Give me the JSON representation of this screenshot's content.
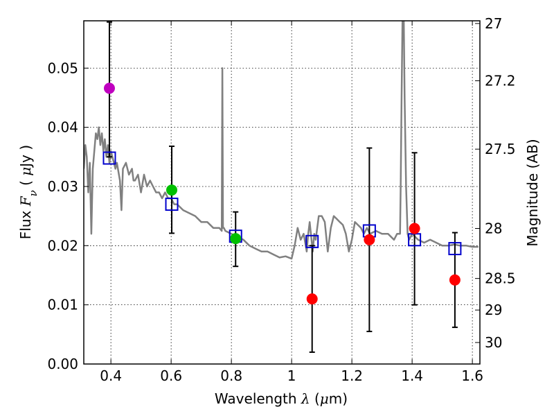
{
  "chart_data": {
    "type": "scatter",
    "title": "",
    "xlabel": {
      "prefix": "Wavelength  ",
      "symbol": "λ",
      "suffix": " (",
      "mu": "μ",
      "unit": "m)"
    },
    "ylabel": {
      "prefix": "Flux  ",
      "symbol": "F",
      "sub": "ν",
      "open": "  ( ",
      "mu": "μ",
      "unit": "Jy )"
    },
    "y2label": "Magnitude (AB)",
    "xlim": [
      0.31,
      1.625
    ],
    "ylim": [
      0.0,
      0.058
    ],
    "grid": true,
    "x_ticks": [
      {
        "value": 0.4,
        "label": "0.4"
      },
      {
        "value": 0.6,
        "label": "0.6"
      },
      {
        "value": 0.8,
        "label": "0.8"
      },
      {
        "value": 1.0,
        "label": "1"
      },
      {
        "value": 1.2,
        "label": "1.2"
      },
      {
        "value": 1.4,
        "label": "1.4"
      },
      {
        "value": 1.6,
        "label": "1.6"
      }
    ],
    "y_ticks": [
      {
        "value": 0.0,
        "label": "0.00"
      },
      {
        "value": 0.01,
        "label": "0.01"
      },
      {
        "value": 0.02,
        "label": "0.02"
      },
      {
        "value": 0.03,
        "label": "0.03"
      },
      {
        "value": 0.04,
        "label": "0.04"
      },
      {
        "value": 0.05,
        "label": "0.05"
      }
    ],
    "y2_ticks": [
      {
        "mag": 27.0,
        "label": "27"
      },
      {
        "mag": 27.2,
        "label": "27.2"
      },
      {
        "mag": 27.5,
        "label": "27.5"
      },
      {
        "mag": 28.0,
        "label": "28"
      },
      {
        "mag": 28.5,
        "label": "28.5"
      },
      {
        "mag": 29.0,
        "label": "29"
      },
      {
        "mag": 30.0,
        "label": "30"
      }
    ],
    "series": [
      {
        "name": "model-spectrum",
        "kind": "line",
        "color": "#808080",
        "x": [
          0.31,
          0.315,
          0.32,
          0.325,
          0.33,
          0.335,
          0.34,
          0.345,
          0.35,
          0.355,
          0.36,
          0.365,
          0.37,
          0.375,
          0.38,
          0.385,
          0.39,
          0.395,
          0.4,
          0.405,
          0.41,
          0.415,
          0.42,
          0.43,
          0.435,
          0.44,
          0.45,
          0.46,
          0.47,
          0.475,
          0.48,
          0.49,
          0.5,
          0.51,
          0.52,
          0.53,
          0.54,
          0.55,
          0.56,
          0.57,
          0.58,
          0.59,
          0.6,
          0.61,
          0.62,
          0.64,
          0.66,
          0.68,
          0.7,
          0.72,
          0.74,
          0.76,
          0.768,
          0.77,
          0.772,
          0.775,
          0.78,
          0.8,
          0.82,
          0.84,
          0.86,
          0.88,
          0.9,
          0.92,
          0.94,
          0.96,
          0.98,
          1.0,
          1.01,
          1.02,
          1.03,
          1.04,
          1.05,
          1.055,
          1.06,
          1.07,
          1.075,
          1.08,
          1.09,
          1.1,
          1.11,
          1.12,
          1.13,
          1.14,
          1.15,
          1.16,
          1.17,
          1.18,
          1.19,
          1.2,
          1.21,
          1.22,
          1.23,
          1.24,
          1.25,
          1.26,
          1.28,
          1.3,
          1.32,
          1.34,
          1.35,
          1.36,
          1.362,
          1.365,
          1.368,
          1.372,
          1.375,
          1.38,
          1.385,
          1.39,
          1.4,
          1.42,
          1.44,
          1.46,
          1.48,
          1.5,
          1.52,
          1.54,
          1.56,
          1.58,
          1.6,
          1.62
        ],
        "y": [
          0.033,
          0.037,
          0.035,
          0.029,
          0.034,
          0.022,
          0.033,
          0.036,
          0.039,
          0.038,
          0.04,
          0.037,
          0.039,
          0.036,
          0.038,
          0.035,
          0.037,
          0.034,
          0.036,
          0.035,
          0.034,
          0.033,
          0.034,
          0.031,
          0.026,
          0.033,
          0.034,
          0.032,
          0.033,
          0.031,
          0.031,
          0.032,
          0.029,
          0.032,
          0.03,
          0.031,
          0.03,
          0.029,
          0.029,
          0.028,
          0.029,
          0.028,
          0.028,
          0.027,
          0.027,
          0.026,
          0.0255,
          0.025,
          0.024,
          0.024,
          0.023,
          0.023,
          0.0225,
          0.05,
          0.023,
          0.023,
          0.0225,
          0.022,
          0.0215,
          0.021,
          0.02,
          0.0195,
          0.019,
          0.019,
          0.0185,
          0.018,
          0.0182,
          0.0178,
          0.02,
          0.023,
          0.021,
          0.022,
          0.019,
          0.022,
          0.024,
          0.019,
          0.022,
          0.021,
          0.025,
          0.025,
          0.024,
          0.019,
          0.023,
          0.025,
          0.0245,
          0.024,
          0.0235,
          0.022,
          0.019,
          0.021,
          0.024,
          0.0235,
          0.023,
          0.022,
          0.023,
          0.022,
          0.0225,
          0.022,
          0.022,
          0.021,
          0.022,
          0.022,
          0.03,
          0.045,
          0.058,
          0.06,
          0.045,
          0.03,
          0.022,
          0.021,
          0.022,
          0.021,
          0.0205,
          0.021,
          0.0205,
          0.02,
          0.02,
          0.0202,
          0.02,
          0.02,
          0.0198,
          0.0198
        ]
      },
      {
        "name": "model-photometry",
        "kind": "open-square",
        "color": "#0000cc",
        "points": [
          {
            "x": 0.395,
            "y": 0.0348
          },
          {
            "x": 0.602,
            "y": 0.027
          },
          {
            "x": 0.814,
            "y": 0.0216
          },
          {
            "x": 1.068,
            "y": 0.0207
          },
          {
            "x": 1.258,
            "y": 0.0225
          },
          {
            "x": 1.408,
            "y": 0.021
          },
          {
            "x": 1.542,
            "y": 0.0195
          }
        ]
      },
      {
        "name": "observed-photometry",
        "kind": "filled-circle-with-errorbar",
        "points": [
          {
            "x": 0.395,
            "y": 0.0466,
            "err_low": 0.035,
            "err_high": 0.0578,
            "color": "#bf00bf"
          },
          {
            "x": 0.602,
            "y": 0.0294,
            "err_low": 0.0221,
            "err_high": 0.0368,
            "color": "#00c000"
          },
          {
            "x": 0.814,
            "y": 0.0212,
            "err_low": 0.0165,
            "err_high": 0.0257,
            "color": "#00c000"
          },
          {
            "x": 1.068,
            "y": 0.011,
            "err_low": 0.002,
            "err_high": 0.02,
            "color": "#ff0000"
          },
          {
            "x": 1.258,
            "y": 0.021,
            "err_low": 0.0055,
            "err_high": 0.0365,
            "color": "#ff0000"
          },
          {
            "x": 1.408,
            "y": 0.0229,
            "err_low": 0.01,
            "err_high": 0.0357,
            "color": "#ff0000"
          },
          {
            "x": 1.542,
            "y": 0.0142,
            "err_low": 0.0062,
            "err_high": 0.0222,
            "color": "#ff0000"
          }
        ]
      }
    ]
  }
}
